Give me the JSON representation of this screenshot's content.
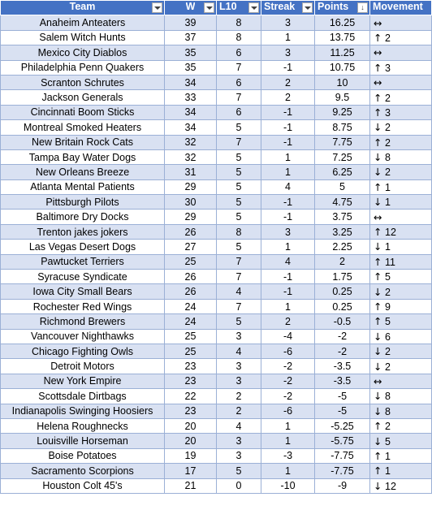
{
  "headers": {
    "team": "Team",
    "w": "W",
    "l10": "L10",
    "streak": "Streak",
    "points": "Points",
    "movement": "Movement"
  },
  "icons": {
    "filter": "filter-dropdown-icon",
    "sort_desc": "sort-descending-icon",
    "up": "up-arrow-icon",
    "down": "down-arrow-icon",
    "same": "left-right-arrow-icon"
  },
  "colors": {
    "header_bg": "#4472c4",
    "band": "#d9e1f2"
  },
  "rows": [
    {
      "team": "Anaheim Anteaters",
      "w": "39",
      "l10": "8",
      "streak": "3",
      "points": "16.25",
      "arrow": "↔",
      "move": ""
    },
    {
      "team": "Salem Witch Hunts",
      "w": "37",
      "l10": "8",
      "streak": "1",
      "points": "13.75",
      "arrow": "↑",
      "move": "2"
    },
    {
      "team": "Mexico City Diablos",
      "w": "35",
      "l10": "6",
      "streak": "3",
      "points": "11.25",
      "arrow": "↔",
      "move": ""
    },
    {
      "team": "Philadelphia Penn Quakers",
      "w": "35",
      "l10": "7",
      "streak": "-1",
      "points": "10.75",
      "arrow": "↑",
      "move": "3"
    },
    {
      "team": "Scranton Schrutes",
      "w": "34",
      "l10": "6",
      "streak": "2",
      "points": "10",
      "arrow": "↔",
      "move": ""
    },
    {
      "team": "Jackson Generals",
      "w": "33",
      "l10": "7",
      "streak": "2",
      "points": "9.5",
      "arrow": "↑",
      "move": "2"
    },
    {
      "team": "Cincinnati Boom Sticks",
      "w": "34",
      "l10": "6",
      "streak": "-1",
      "points": "9.25",
      "arrow": "↑",
      "move": "3"
    },
    {
      "team": "Montreal Smoked Heaters",
      "w": "34",
      "l10": "5",
      "streak": "-1",
      "points": "8.75",
      "arrow": "↓",
      "move": "2"
    },
    {
      "team": "New Britain Rock Cats",
      "w": "32",
      "l10": "7",
      "streak": "-1",
      "points": "7.75",
      "arrow": "↑",
      "move": "2"
    },
    {
      "team": "Tampa Bay Water Dogs",
      "w": "32",
      "l10": "5",
      "streak": "1",
      "points": "7.25",
      "arrow": "↓",
      "move": "8"
    },
    {
      "team": "New Orleans Breeze",
      "w": "31",
      "l10": "5",
      "streak": "1",
      "points": "6.25",
      "arrow": "↓",
      "move": "2"
    },
    {
      "team": "Atlanta Mental Patients",
      "w": "29",
      "l10": "5",
      "streak": "4",
      "points": "5",
      "arrow": "↑",
      "move": "1"
    },
    {
      "team": "Pittsburgh Pilots",
      "w": "30",
      "l10": "5",
      "streak": "-1",
      "points": "4.75",
      "arrow": "↓",
      "move": "1"
    },
    {
      "team": "Baltimore Dry Docks",
      "w": "29",
      "l10": "5",
      "streak": "-1",
      "points": "3.75",
      "arrow": "↔",
      "move": ""
    },
    {
      "team": "Trenton jakes jokers",
      "w": "26",
      "l10": "8",
      "streak": "3",
      "points": "3.25",
      "arrow": "↑",
      "move": "12"
    },
    {
      "team": "Las Vegas Desert Dogs",
      "w": "27",
      "l10": "5",
      "streak": "1",
      "points": "2.25",
      "arrow": "↓",
      "move": "1"
    },
    {
      "team": "Pawtucket Terriers",
      "w": "25",
      "l10": "7",
      "streak": "4",
      "points": "2",
      "arrow": "↑",
      "move": "11"
    },
    {
      "team": "Syracuse Syndicate",
      "w": "26",
      "l10": "7",
      "streak": "-1",
      "points": "1.75",
      "arrow": "↑",
      "move": "5"
    },
    {
      "team": "Iowa City Small Bears",
      "w": "26",
      "l10": "4",
      "streak": "-1",
      "points": "0.25",
      "arrow": "↓",
      "move": "2"
    },
    {
      "team": "Rochester Red Wings",
      "w": "24",
      "l10": "7",
      "streak": "1",
      "points": "0.25",
      "arrow": "↑",
      "move": "9"
    },
    {
      "team": "Richmond Brewers",
      "w": "24",
      "l10": "5",
      "streak": "2",
      "points": "-0.5",
      "arrow": "↑",
      "move": "5"
    },
    {
      "team": "Vancouver Nighthawks",
      "w": "25",
      "l10": "3",
      "streak": "-4",
      "points": "-2",
      "arrow": "↓",
      "move": "6"
    },
    {
      "team": "Chicago Fighting Owls",
      "w": "25",
      "l10": "4",
      "streak": "-6",
      "points": "-2",
      "arrow": "↓",
      "move": "2"
    },
    {
      "team": "Detroit Motors",
      "w": "23",
      "l10": "3",
      "streak": "-2",
      "points": "-3.5",
      "arrow": "↓",
      "move": "2"
    },
    {
      "team": "New York Empire",
      "w": "23",
      "l10": "3",
      "streak": "-2",
      "points": "-3.5",
      "arrow": "↔",
      "move": ""
    },
    {
      "team": "Scottsdale Dirtbags",
      "w": "22",
      "l10": "2",
      "streak": "-2",
      "points": "-5",
      "arrow": "↓",
      "move": "8"
    },
    {
      "team": "Indianapolis Swinging Hoosiers",
      "w": "23",
      "l10": "2",
      "streak": "-6",
      "points": "-5",
      "arrow": "↓",
      "move": "8"
    },
    {
      "team": "Helena Roughnecks",
      "w": "20",
      "l10": "4",
      "streak": "1",
      "points": "-5.25",
      "arrow": "↑",
      "move": "2"
    },
    {
      "team": "Louisville Horseman",
      "w": "20",
      "l10": "3",
      "streak": "1",
      "points": "-5.75",
      "arrow": "↓",
      "move": "5"
    },
    {
      "team": "Boise Potatoes",
      "w": "19",
      "l10": "3",
      "streak": "-3",
      "points": "-7.75",
      "arrow": "↑",
      "move": "1"
    },
    {
      "team": "Sacramento Scorpions",
      "w": "17",
      "l10": "5",
      "streak": "1",
      "points": "-7.75",
      "arrow": "↑",
      "move": "1"
    },
    {
      "team": "Houston Colt 45's",
      "w": "21",
      "l10": "0",
      "streak": "-10",
      "points": "-9",
      "arrow": "↓",
      "move": "12"
    }
  ]
}
